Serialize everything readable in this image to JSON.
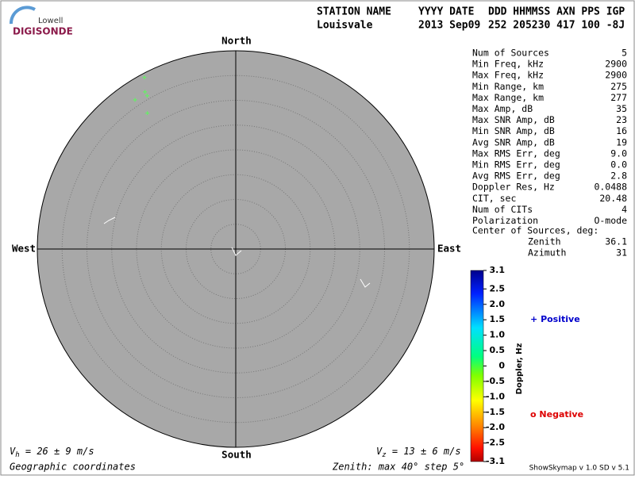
{
  "logo": {
    "line1": "Lowell",
    "line2": "DIGISONDE"
  },
  "header": {
    "columns": [
      "STATION NAME",
      "YYYY DATE",
      "DDD HHMMSS AXN PPS IGP"
    ],
    "values": [
      "Louisvale",
      "2013 Sep09",
      "252 205230 417 100 -8J"
    ]
  },
  "chart_data": {
    "type": "polar",
    "directions": {
      "north": "North",
      "south": "South",
      "east": "East",
      "west": "West"
    },
    "zenith_max": 40,
    "ring_step": 5,
    "sources": {
      "color": "#66ee66",
      "zenith": [
        39.2,
        36.6,
        35.7,
        36.3,
        32.7
      ],
      "azimuth": [
        332,
        330,
        330,
        326,
        327
      ]
    },
    "vh": {
      "symbol": "V",
      "sub": "h",
      "text": " = 26 ± 9 m/s"
    },
    "vz": {
      "symbol": "V",
      "sub": "z",
      "text": " = 13 ± 6 m/s"
    },
    "coords": "Geographic coordinates",
    "zenith_note": "Zenith: max 40°  step 5°",
    "colorbar": {
      "label": "Doppler, Hz",
      "lim": [
        -3.1,
        3.1
      ],
      "ticks": [
        3.1,
        {
          "value": 2.5,
          "label": "2.5"
        },
        {
          "value": 2.0,
          "label": "2.0"
        },
        1.5,
        {
          "value": 1.0,
          "label": "1.0"
        },
        0.5,
        0,
        -0.5,
        {
          "value": -1.0,
          "label": "-1.0"
        },
        -1.5,
        {
          "value": -2.0,
          "label": "-2.0"
        },
        -2.5,
        -3.1
      ]
    },
    "legend": {
      "positive": {
        "symbol": "+",
        "label": "Positive",
        "color": "#0000cc"
      },
      "negative": {
        "symbol": "o",
        "label": "Negative",
        "color": "#dd0000"
      }
    }
  },
  "stats": {
    "rows": [
      [
        "Num of Sources",
        "5"
      ],
      [
        "Min Freq, kHz",
        "2900"
      ],
      [
        "Max Freq, kHz",
        "2900"
      ],
      [
        "Min Range, km",
        "275"
      ],
      [
        "Max Range, km",
        "277"
      ],
      [
        "Max Amp, dB",
        "35"
      ],
      [
        "Max SNR Amp, dB",
        "23"
      ],
      [
        "Min SNR Amp, dB",
        "16"
      ],
      [
        "Avg SNR Amp, dB",
        "19"
      ],
      [
        "Max RMS Err, deg",
        "9.0"
      ],
      [
        "Min RMS Err, deg",
        "0.0"
      ],
      [
        "Avg RMS Err, deg",
        "2.8"
      ],
      [
        "Doppler Res, Hz",
        "0.0488"
      ],
      [
        "CIT, sec",
        "20.48"
      ],
      [
        "Num of CITs",
        "4"
      ],
      [
        "Polarization",
        "O-mode"
      ]
    ],
    "center_title": "Center of Sources, deg:",
    "center_rows": [
      [
        "Zenith",
        "36.1"
      ],
      [
        "Azimuth",
        "31"
      ]
    ]
  },
  "footer": "ShowSkymap v 1.0   SD v 5.1"
}
